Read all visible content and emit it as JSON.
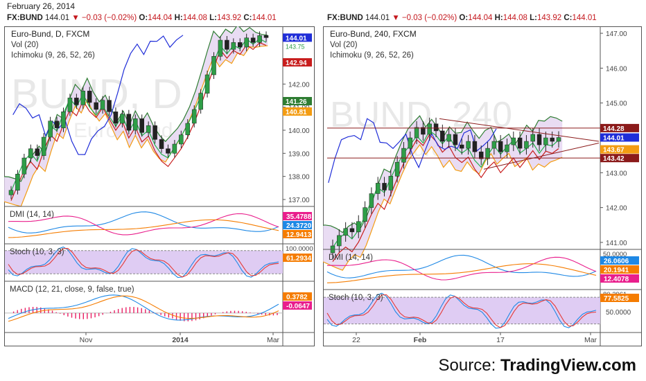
{
  "date": "February 26, 2014",
  "source": {
    "prefix": "Source:",
    "brand": "TradingView.com"
  },
  "quote": {
    "symbol": "FX:BUND",
    "last": "144.01",
    "arrow": "▼",
    "change": "−0.03 (−0.02%)",
    "o_label": "O:",
    "o": "144.04",
    "h_label": "H:",
    "h": "144.08",
    "l_label": "L:",
    "l": "143.92",
    "c_label": "C:",
    "c": "144.01"
  },
  "colors": {
    "price_line": "#1f2dd8",
    "tenkan": "#22b14c",
    "kijun": "#c81e1e",
    "span": "#f39c12",
    "chikou_green": "#2e7d32",
    "cloud": "#e3d3f0",
    "dmi_plus": "#1e88e5",
    "dmi_minus": "#e91e8c",
    "adx": "#f57c00",
    "stoch_bg": "#dcc6f2",
    "macd_hist": "#e91e63"
  },
  "chart_data": [
    {
      "type": "candlestick",
      "title": "Euro-Bund, D, FXCM",
      "watermark": "BUND, D",
      "watermark_sub": "Euro-Bund",
      "indicators_text": [
        "Vol (20)",
        "Ichimoku (9, 26, 52, 26)"
      ],
      "x_ticks": [
        "Nov",
        "2014",
        "Mar"
      ],
      "y_ticks": [
        137.0,
        138.0,
        139.0,
        140.0,
        141.0,
        142.0
      ],
      "ylim": [
        136.7,
        144.5
      ],
      "last_price": 144.01,
      "price_path": [
        137.4,
        138.1,
        138.8,
        139.2,
        138.9,
        139.7,
        140.4,
        140.1,
        140.8,
        141.4,
        141.1,
        141.7,
        141.2,
        140.9,
        141.3,
        140.8,
        140.3,
        140.7,
        140.0,
        140.5,
        139.9,
        140.2,
        139.6,
        139.2,
        139.0,
        139.4,
        139.8,
        140.3,
        140.9,
        141.6,
        142.4,
        143.2,
        143.9,
        143.5,
        143.8,
        143.6,
        144.0,
        143.8,
        144.1,
        144.01
      ],
      "labels": [
        {
          "text": "144.01",
          "value": 144.01,
          "color": "#1f2dd8"
        },
        {
          "text": "142.94",
          "value": 142.94,
          "color": "#c81e1e"
        },
        {
          "text": "141.26",
          "value": 141.26,
          "color": "#2e7d32"
        },
        {
          "text": "140.81",
          "value": 140.81,
          "color": "#f39c12"
        }
      ],
      "partial_label": "143.75",
      "sub": [
        {
          "title": "DMI (14, 14)",
          "labels": [
            {
              "text": "35.4788",
              "color": "#e91e8c"
            },
            {
              "text": "24.3720",
              "color": "#1e88e5"
            },
            {
              "text": "12.9413",
              "color": "#f57c00"
            }
          ]
        },
        {
          "title": "Stoch (10, 3, 3)",
          "top_label": "100.0000",
          "labels": [
            {
              "text": "61.2934",
              "color": "#f57c00"
            }
          ]
        },
        {
          "title": "MACD (12, 21, close, 9, false, true)",
          "labels": [
            {
              "text": "0.3782",
              "color": "#f57c00"
            },
            {
              "text": "-0.0647",
              "color": "#e91e8c"
            }
          ]
        }
      ]
    },
    {
      "type": "candlestick",
      "title": "Euro-Bund, 240, FXCM",
      "watermark": "BUND, 240",
      "watermark_sub": "Euro-Bund",
      "indicators_text": [
        "Vol (20)",
        "Ichimoku (9, 26, 52, 26)"
      ],
      "x_ticks": [
        "22",
        "Feb",
        "17",
        "Mar"
      ],
      "y_ticks": [
        141.0,
        142.0,
        143.0,
        144.0,
        145.0,
        146.0,
        147.0
      ],
      "ylim": [
        140.8,
        147.2
      ],
      "last_price": 144.01,
      "price_path": [
        140.9,
        141.2,
        141.4,
        141.3,
        141.6,
        142.0,
        142.4,
        142.7,
        142.5,
        142.9,
        143.3,
        143.7,
        144.0,
        144.3,
        144.1,
        144.4,
        144.2,
        143.9,
        144.1,
        143.8,
        143.7,
        143.9,
        143.6,
        143.4,
        143.7,
        143.9,
        143.6,
        143.8,
        144.0,
        143.7,
        143.9,
        144.1,
        143.8,
        144.0,
        143.9,
        144.01
      ],
      "labels": [
        {
          "text": "144.28",
          "value": 144.28,
          "color": "#8b1a1a"
        },
        {
          "text": "144.01",
          "value": 144.01,
          "color": "#1f2dd8"
        },
        {
          "text": "143.67",
          "value": 143.67,
          "color": "#f39c12"
        },
        {
          "text": "143.42",
          "value": 143.42,
          "color": "#8b1a1a"
        }
      ],
      "sub": [
        {
          "title": "DMI (14, 14)",
          "top_label": "50.0000",
          "labels": [
            {
              "text": "26.0606",
              "color": "#1e88e5"
            },
            {
              "text": "20.1941",
              "color": "#f57c00"
            },
            {
              "text": "12.4078",
              "color": "#e91e8c"
            }
          ]
        },
        {
          "title": "Stoch (10, 3, 3)",
          "top_label": "80.2961",
          "mid_label": "50.0000",
          "labels": [
            {
              "text": "77.5825",
              "color": "#f57c00"
            }
          ]
        }
      ]
    }
  ]
}
